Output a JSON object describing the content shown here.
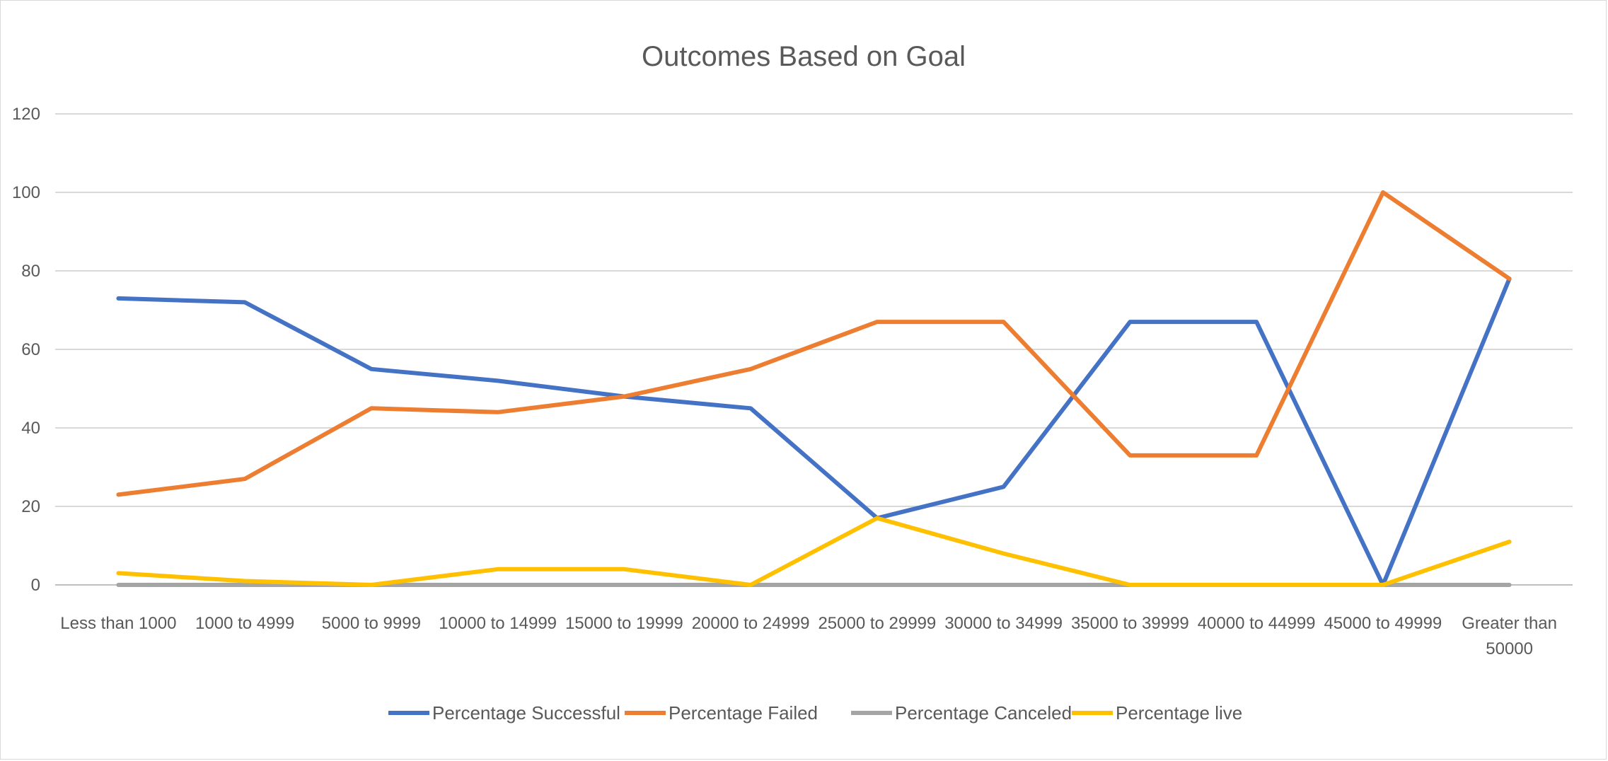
{
  "chart_data": {
    "type": "line",
    "title": "Outcomes Based on Goal",
    "xlabel": "",
    "ylabel": "",
    "ylim": [
      0,
      120
    ],
    "yticks": [
      0,
      20,
      40,
      60,
      80,
      100,
      120
    ],
    "grid": true,
    "legend_position": "bottom",
    "categories": [
      "Less than 1000",
      "1000 to 4999",
      "5000 to 9999",
      "10000 to 14999",
      "15000 to 19999",
      "20000 to 24999",
      "25000 to 29999",
      "30000 to 34999",
      "35000 to 39999",
      "40000 to 44999",
      "45000 to 49999",
      "Greater than 50000"
    ],
    "category_lines": [
      [
        "Less than 1000"
      ],
      [
        "1000 to 4999"
      ],
      [
        "5000 to 9999"
      ],
      [
        "10000 to 14999"
      ],
      [
        "15000 to 19999"
      ],
      [
        "20000 to 24999"
      ],
      [
        "25000 to 29999"
      ],
      [
        "30000 to 34999"
      ],
      [
        "35000 to 39999"
      ],
      [
        "40000 to 44999"
      ],
      [
        "45000 to 49999"
      ],
      [
        "Greater than",
        "50000"
      ]
    ],
    "series": [
      {
        "name": "Percentage Successful",
        "color": "#4472C4",
        "values": [
          73,
          72,
          55,
          52,
          48,
          45,
          17,
          25,
          67,
          67,
          0,
          78
        ]
      },
      {
        "name": "Percentage Failed",
        "color": "#ED7D31",
        "values": [
          23,
          27,
          45,
          44,
          48,
          55,
          67,
          67,
          33,
          33,
          100,
          78
        ]
      },
      {
        "name": "Percentage Canceled",
        "color": "#A5A5A5",
        "values": [
          0,
          0,
          0,
          0,
          0,
          0,
          0,
          0,
          0,
          0,
          0,
          0
        ]
      },
      {
        "name": "Percentage live",
        "color": "#FFC000",
        "values": [
          3,
          1,
          0,
          4,
          4,
          0,
          17,
          8,
          0,
          0,
          0,
          11
        ]
      }
    ],
    "draw_order": [
      0,
      1,
      2,
      3
    ]
  }
}
